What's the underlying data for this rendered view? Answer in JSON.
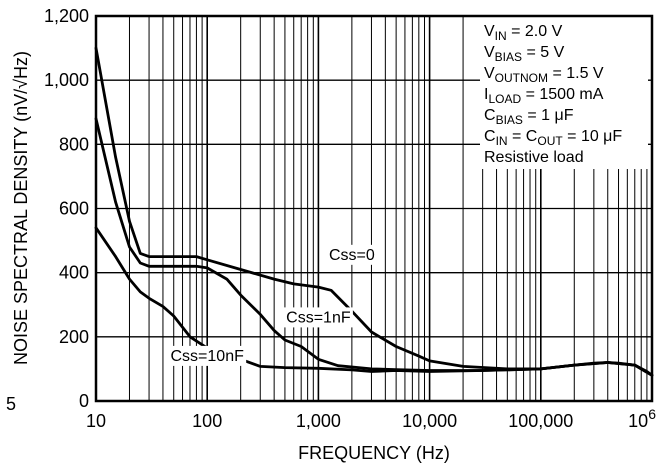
{
  "chart_data": {
    "type": "line",
    "xlabel": "FREQUENCY (Hz)",
    "ylabel": "NOISE SPECTRAL DENSITY (nV/√Hz)",
    "x_scale": "log",
    "xlim": [
      10,
      1000000
    ],
    "ylim": [
      0,
      1200
    ],
    "grid": true,
    "x_ticks": [
      {
        "value": 10,
        "label": "10"
      },
      {
        "value": 100,
        "label": "100"
      },
      {
        "value": 1000,
        "label": "1,000"
      },
      {
        "value": 10000,
        "label": "10,000"
      },
      {
        "value": 100000,
        "label": "100,000"
      },
      {
        "value": 1000000,
        "label": "10",
        "sup": "6"
      }
    ],
    "y_ticks": [
      {
        "value": 0,
        "label": "0"
      },
      {
        "value": 200,
        "label": "200"
      },
      {
        "value": 400,
        "label": "400"
      },
      {
        "value": 600,
        "label": "600"
      },
      {
        "value": 800,
        "label": "800"
      },
      {
        "value": 1000,
        "label": "1,000"
      },
      {
        "value": 1200,
        "label": "1,200"
      }
    ],
    "side_mark": "5",
    "conditions": [
      {
        "main": "V",
        "sub": "IN",
        "rest": " = 2.0 V"
      },
      {
        "main": "V",
        "sub": "BIAS",
        "rest": " = 5 V"
      },
      {
        "main": "V",
        "sub": "OUTNOM",
        "rest": " = 1.5 V"
      },
      {
        "main": "I",
        "sub": "LOAD",
        "rest": " = 1500 mA"
      },
      {
        "main": "C",
        "sub": "BIAS",
        "rest": " = 1 μF"
      },
      {
        "main": "C",
        "sub": "IN",
        "rest": " = C",
        "sub2": "OUT",
        "rest2": " = 10 μF"
      },
      {
        "main": "Resistive load",
        "sub": "",
        "rest": ""
      }
    ],
    "series": [
      {
        "name": "Css=0",
        "label_at": [
          2000,
          440
        ],
        "points": [
          [
            10,
            1100
          ],
          [
            15,
            760
          ],
          [
            20,
            560
          ],
          [
            25,
            460
          ],
          [
            30,
            450
          ],
          [
            50,
            450
          ],
          [
            80,
            450
          ],
          [
            100,
            440
          ],
          [
            200,
            410
          ],
          [
            400,
            380
          ],
          [
            600,
            365
          ],
          [
            1000,
            355
          ],
          [
            1300,
            345
          ],
          [
            2000,
            280
          ],
          [
            3000,
            215
          ],
          [
            5000,
            170
          ],
          [
            8000,
            140
          ],
          [
            10000,
            125
          ],
          [
            20000,
            108
          ],
          [
            50000,
            100
          ],
          [
            100000,
            100
          ],
          [
            200000,
            112
          ],
          [
            300000,
            118
          ],
          [
            400000,
            120
          ],
          [
            500000,
            118
          ],
          [
            700000,
            112
          ],
          [
            900000,
            92
          ],
          [
            1000000,
            80
          ]
        ]
      },
      {
        "name": "Css=1nF",
        "label_at": [
          1000,
          245
        ],
        "points": [
          [
            10,
            880
          ],
          [
            15,
            620
          ],
          [
            20,
            480
          ],
          [
            25,
            430
          ],
          [
            30,
            420
          ],
          [
            50,
            420
          ],
          [
            80,
            420
          ],
          [
            100,
            415
          ],
          [
            150,
            380
          ],
          [
            200,
            330
          ],
          [
            300,
            270
          ],
          [
            400,
            220
          ],
          [
            500,
            190
          ],
          [
            700,
            170
          ],
          [
            1000,
            130
          ],
          [
            1500,
            110
          ],
          [
            3000,
            100
          ],
          [
            5000,
            98
          ],
          [
            10000,
            95
          ],
          [
            30000,
            95
          ],
          [
            100000,
            100
          ],
          [
            200000,
            112
          ],
          [
            400000,
            120
          ],
          [
            700000,
            112
          ],
          [
            1000000,
            80
          ]
        ]
      },
      {
        "name": "Css=10nF",
        "label_at": [
          100,
          125
        ],
        "points": [
          [
            10,
            540
          ],
          [
            15,
            450
          ],
          [
            20,
            380
          ],
          [
            25,
            340
          ],
          [
            30,
            320
          ],
          [
            40,
            295
          ],
          [
            50,
            265
          ],
          [
            70,
            200
          ],
          [
            100,
            165
          ],
          [
            200,
            130
          ],
          [
            300,
            108
          ],
          [
            500,
            104
          ],
          [
            1000,
            102
          ],
          [
            2000,
            97
          ],
          [
            3000,
            92
          ],
          [
            5000,
            95
          ],
          [
            10000,
            92
          ],
          [
            30000,
            95
          ],
          [
            100000,
            100
          ],
          [
            200000,
            112
          ],
          [
            400000,
            120
          ],
          [
            700000,
            112
          ],
          [
            1000000,
            80
          ]
        ]
      }
    ]
  }
}
